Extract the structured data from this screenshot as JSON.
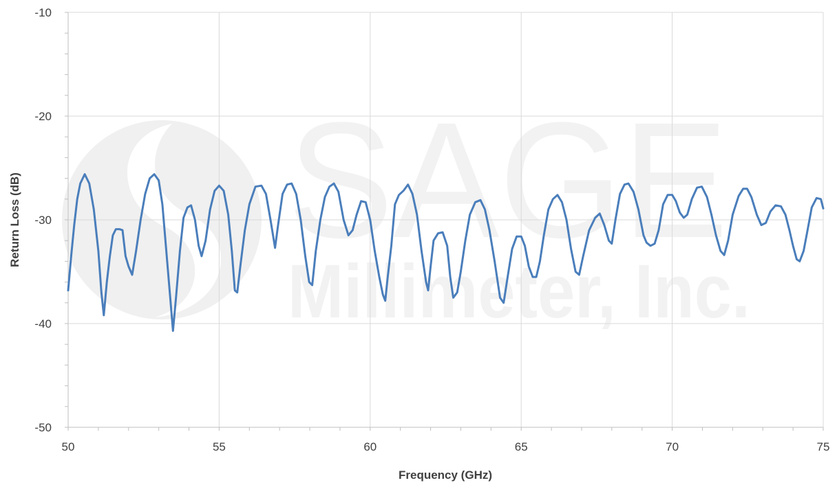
{
  "chart_data": {
    "type": "line",
    "title": "",
    "xlabel": "Frequency (GHz)",
    "ylabel": "Return Loss (dB)",
    "xlim": [
      50,
      75
    ],
    "ylim": [
      -50,
      -10
    ],
    "x_major_ticks": [
      50,
      55,
      60,
      65,
      70,
      75
    ],
    "y_major_ticks": [
      -50,
      -40,
      -30,
      -20,
      -10
    ],
    "x_tick_labels": [
      "50",
      "55",
      "60",
      "65",
      "70",
      "75"
    ],
    "y_tick_labels": [
      "-50",
      "-40",
      "-30",
      "-20",
      "-10"
    ],
    "grid": true,
    "legend": "none",
    "series": [
      {
        "color": "#4a7ebb",
        "points": [
          [
            50.0,
            -36.8
          ],
          [
            50.1,
            -33.5
          ],
          [
            50.2,
            -30.5
          ],
          [
            50.3,
            -28.0
          ],
          [
            50.4,
            -26.5
          ],
          [
            50.55,
            -25.6
          ],
          [
            50.7,
            -26.5
          ],
          [
            50.85,
            -29.0
          ],
          [
            51.0,
            -33.0
          ],
          [
            51.1,
            -37.0
          ],
          [
            51.18,
            -39.2
          ],
          [
            51.28,
            -36.0
          ],
          [
            51.38,
            -33.5
          ],
          [
            51.48,
            -31.5
          ],
          [
            51.58,
            -30.9
          ],
          [
            51.7,
            -30.9
          ],
          [
            51.8,
            -31.0
          ],
          [
            51.9,
            -33.5
          ],
          [
            52.0,
            -34.5
          ],
          [
            52.12,
            -35.3
          ],
          [
            52.25,
            -33.0
          ],
          [
            52.4,
            -30.0
          ],
          [
            52.55,
            -27.5
          ],
          [
            52.7,
            -26.0
          ],
          [
            52.85,
            -25.6
          ],
          [
            53.0,
            -26.2
          ],
          [
            53.12,
            -28.5
          ],
          [
            53.25,
            -33.0
          ],
          [
            53.38,
            -37.5
          ],
          [
            53.47,
            -40.7
          ],
          [
            53.57,
            -37.5
          ],
          [
            53.7,
            -33.0
          ],
          [
            53.82,
            -29.8
          ],
          [
            53.95,
            -28.8
          ],
          [
            54.07,
            -28.6
          ],
          [
            54.2,
            -30.0
          ],
          [
            54.32,
            -32.5
          ],
          [
            54.42,
            -33.5
          ],
          [
            54.55,
            -32.0
          ],
          [
            54.7,
            -29.0
          ],
          [
            54.85,
            -27.2
          ],
          [
            55.0,
            -26.7
          ],
          [
            55.15,
            -27.2
          ],
          [
            55.3,
            -29.5
          ],
          [
            55.42,
            -33.0
          ],
          [
            55.52,
            -36.8
          ],
          [
            55.6,
            -37.0
          ],
          [
            55.7,
            -34.5
          ],
          [
            55.85,
            -31.0
          ],
          [
            56.0,
            -28.5
          ],
          [
            56.2,
            -26.8
          ],
          [
            56.4,
            -26.7
          ],
          [
            56.55,
            -27.5
          ],
          [
            56.7,
            -30.0
          ],
          [
            56.85,
            -32.7
          ],
          [
            56.95,
            -30.5
          ],
          [
            57.1,
            -27.5
          ],
          [
            57.25,
            -26.6
          ],
          [
            57.4,
            -26.5
          ],
          [
            57.55,
            -27.5
          ],
          [
            57.7,
            -30.0
          ],
          [
            57.85,
            -33.5
          ],
          [
            57.98,
            -36.0
          ],
          [
            58.08,
            -36.3
          ],
          [
            58.2,
            -33.0
          ],
          [
            58.35,
            -30.0
          ],
          [
            58.5,
            -27.8
          ],
          [
            58.65,
            -26.8
          ],
          [
            58.8,
            -26.5
          ],
          [
            58.95,
            -27.3
          ],
          [
            59.12,
            -30.0
          ],
          [
            59.28,
            -31.5
          ],
          [
            59.42,
            -31.0
          ],
          [
            59.55,
            -29.5
          ],
          [
            59.7,
            -28.2
          ],
          [
            59.85,
            -28.3
          ],
          [
            60.0,
            -30.0
          ],
          [
            60.15,
            -33.0
          ],
          [
            60.3,
            -35.5
          ],
          [
            60.42,
            -37.2
          ],
          [
            60.5,
            -37.8
          ],
          [
            60.58,
            -35.5
          ],
          [
            60.7,
            -32.5
          ],
          [
            60.82,
            -28.5
          ],
          [
            60.95,
            -27.6
          ],
          [
            61.1,
            -27.2
          ],
          [
            61.25,
            -26.6
          ],
          [
            61.4,
            -27.5
          ],
          [
            61.55,
            -29.5
          ],
          [
            61.7,
            -33.0
          ],
          [
            61.85,
            -36.0
          ],
          [
            61.92,
            -36.8
          ],
          [
            62.0,
            -34.5
          ],
          [
            62.1,
            -32.0
          ],
          [
            62.25,
            -31.3
          ],
          [
            62.4,
            -31.2
          ],
          [
            62.55,
            -32.5
          ],
          [
            62.65,
            -35.5
          ],
          [
            62.75,
            -37.5
          ],
          [
            62.88,
            -37.0
          ],
          [
            63.0,
            -35.0
          ],
          [
            63.15,
            -32.0
          ],
          [
            63.3,
            -29.5
          ],
          [
            63.48,
            -28.3
          ],
          [
            63.65,
            -28.1
          ],
          [
            63.8,
            -29.0
          ],
          [
            63.95,
            -31.0
          ],
          [
            64.12,
            -34.0
          ],
          [
            64.3,
            -37.5
          ],
          [
            64.42,
            -38.0
          ],
          [
            64.55,
            -35.5
          ],
          [
            64.7,
            -32.8
          ],
          [
            64.85,
            -31.6
          ],
          [
            65.0,
            -31.6
          ],
          [
            65.12,
            -32.5
          ],
          [
            65.25,
            -34.5
          ],
          [
            65.38,
            -35.5
          ],
          [
            65.5,
            -35.5
          ],
          [
            65.62,
            -34.0
          ],
          [
            65.75,
            -31.5
          ],
          [
            65.9,
            -29.0
          ],
          [
            66.05,
            -28.0
          ],
          [
            66.2,
            -27.6
          ],
          [
            66.35,
            -28.3
          ],
          [
            66.5,
            -30.0
          ],
          [
            66.65,
            -32.8
          ],
          [
            66.8,
            -35.0
          ],
          [
            66.92,
            -35.3
          ],
          [
            67.05,
            -33.5
          ],
          [
            67.25,
            -31.0
          ],
          [
            67.45,
            -29.8
          ],
          [
            67.6,
            -29.4
          ],
          [
            67.75,
            -30.5
          ],
          [
            67.9,
            -32.0
          ],
          [
            68.0,
            -32.3
          ],
          [
            68.12,
            -30.0
          ],
          [
            68.27,
            -27.5
          ],
          [
            68.42,
            -26.6
          ],
          [
            68.55,
            -26.5
          ],
          [
            68.72,
            -27.3
          ],
          [
            68.88,
            -29.0
          ],
          [
            69.05,
            -31.5
          ],
          [
            69.15,
            -32.2
          ],
          [
            69.28,
            -32.5
          ],
          [
            69.42,
            -32.3
          ],
          [
            69.55,
            -31.0
          ],
          [
            69.7,
            -28.5
          ],
          [
            69.85,
            -27.6
          ],
          [
            70.0,
            -27.6
          ],
          [
            70.12,
            -28.2
          ],
          [
            70.25,
            -29.3
          ],
          [
            70.38,
            -29.8
          ],
          [
            70.5,
            -29.5
          ],
          [
            70.65,
            -28.0
          ],
          [
            70.82,
            -26.9
          ],
          [
            70.98,
            -26.8
          ],
          [
            71.15,
            -27.8
          ],
          [
            71.3,
            -29.5
          ],
          [
            71.45,
            -31.5
          ],
          [
            71.6,
            -33.0
          ],
          [
            71.72,
            -33.4
          ],
          [
            71.85,
            -32.0
          ],
          [
            72.0,
            -29.5
          ],
          [
            72.2,
            -27.7
          ],
          [
            72.35,
            -27.0
          ],
          [
            72.48,
            -27.0
          ],
          [
            72.62,
            -27.8
          ],
          [
            72.8,
            -29.5
          ],
          [
            72.95,
            -30.5
          ],
          [
            73.1,
            -30.3
          ],
          [
            73.25,
            -29.2
          ],
          [
            73.42,
            -28.6
          ],
          [
            73.6,
            -28.7
          ],
          [
            73.75,
            -29.5
          ],
          [
            73.88,
            -31.0
          ],
          [
            74.0,
            -32.5
          ],
          [
            74.12,
            -33.8
          ],
          [
            74.22,
            -34.0
          ],
          [
            74.35,
            -33.0
          ],
          [
            74.48,
            -31.0
          ],
          [
            74.62,
            -28.8
          ],
          [
            74.78,
            -27.9
          ],
          [
            74.92,
            -28.0
          ],
          [
            75.0,
            -28.9
          ]
        ]
      }
    ]
  },
  "watermark": {
    "brand": "SAGE",
    "company": "Millimeter, Inc."
  }
}
